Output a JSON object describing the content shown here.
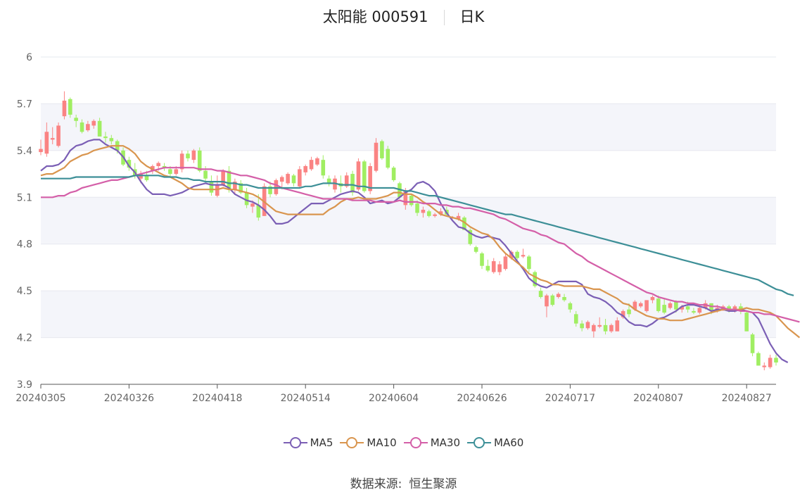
{
  "title": {
    "name": "太阳能 000591",
    "period": "日K"
  },
  "source": {
    "label": "数据来源:",
    "value": "恒生聚源"
  },
  "colors": {
    "up": "#fa8383",
    "down": "#a0ee62",
    "MA5": "#7b5fb5",
    "MA10": "#d9954e",
    "MA30": "#d45fa8",
    "MA60": "#3d8f97",
    "band": "#f4f5fa",
    "grid": "#e6e8ef",
    "axis": "#666666"
  },
  "chart_data": {
    "type": "candlestick",
    "y_ticks": [
      "6",
      "5.7",
      "5.4",
      "5.1",
      "4.8",
      "4.5",
      "4.2",
      "3.9"
    ],
    "ylim": [
      3.9,
      6.0
    ],
    "x_tick_labels": [
      "20240305",
      "20240326",
      "20240418",
      "20240514",
      "20240604",
      "20240626",
      "20240717",
      "20240807",
      "20240827"
    ],
    "x_tick_index": [
      0,
      15,
      30,
      45,
      60,
      75,
      90,
      105,
      120
    ],
    "legend": [
      "MA5",
      "MA10",
      "MA30",
      "MA60"
    ],
    "candles": [
      [
        5.39,
        5.47,
        5.37,
        5.41
      ],
      [
        5.38,
        5.58,
        5.36,
        5.52
      ],
      [
        5.47,
        5.55,
        5.44,
        5.48
      ],
      [
        5.43,
        5.58,
        5.42,
        5.56
      ],
      [
        5.62,
        5.78,
        5.6,
        5.72
      ],
      [
        5.73,
        5.74,
        5.61,
        5.63
      ],
      [
        5.61,
        5.63,
        5.55,
        5.59
      ],
      [
        5.58,
        5.6,
        5.51,
        5.52
      ],
      [
        5.53,
        5.59,
        5.52,
        5.57
      ],
      [
        5.56,
        5.6,
        5.54,
        5.59
      ],
      [
        5.59,
        5.61,
        5.49,
        5.49
      ],
      [
        5.49,
        5.52,
        5.45,
        5.48
      ],
      [
        5.48,
        5.5,
        5.44,
        5.46
      ],
      [
        5.46,
        5.47,
        5.38,
        5.4
      ],
      [
        5.4,
        5.42,
        5.3,
        5.31
      ],
      [
        5.34,
        5.36,
        5.27,
        5.29
      ],
      [
        5.28,
        5.32,
        5.22,
        5.24
      ],
      [
        5.22,
        5.27,
        5.19,
        5.25
      ],
      [
        5.24,
        5.27,
        5.2,
        5.21
      ],
      [
        5.27,
        5.31,
        5.25,
        5.3
      ],
      [
        5.3,
        5.33,
        5.27,
        5.32
      ],
      [
        5.3,
        5.32,
        5.27,
        5.29
      ],
      [
        5.28,
        5.3,
        5.23,
        5.25
      ],
      [
        5.25,
        5.3,
        5.24,
        5.28
      ],
      [
        5.28,
        5.4,
        5.26,
        5.38
      ],
      [
        5.38,
        5.4,
        5.33,
        5.35
      ],
      [
        5.34,
        5.41,
        5.32,
        5.4
      ],
      [
        5.4,
        5.42,
        5.26,
        5.27
      ],
      [
        5.27,
        5.3,
        5.2,
        5.22
      ],
      [
        5.2,
        5.24,
        5.11,
        5.13
      ],
      [
        5.11,
        5.24,
        5.1,
        5.18
      ],
      [
        5.18,
        5.28,
        5.17,
        5.27
      ],
      [
        5.27,
        5.3,
        5.13,
        5.15
      ],
      [
        5.15,
        5.22,
        5.12,
        5.2
      ],
      [
        5.19,
        5.21,
        5.12,
        5.13
      ],
      [
        5.13,
        5.16,
        5.03,
        5.05
      ],
      [
        5.04,
        5.08,
        5.0,
        5.06
      ],
      [
        5.05,
        5.12,
        4.95,
        4.97
      ],
      [
        4.98,
        5.19,
        4.98,
        5.17
      ],
      [
        5.17,
        5.2,
        5.1,
        5.12
      ],
      [
        5.12,
        5.22,
        5.11,
        5.21
      ],
      [
        5.2,
        5.24,
        5.15,
        5.23
      ],
      [
        5.19,
        5.26,
        5.18,
        5.25
      ],
      [
        5.24,
        5.25,
        5.17,
        5.19
      ],
      [
        5.17,
        5.3,
        5.16,
        5.28
      ],
      [
        5.26,
        5.31,
        5.24,
        5.3
      ],
      [
        5.28,
        5.36,
        5.27,
        5.34
      ],
      [
        5.31,
        5.36,
        5.3,
        5.35
      ],
      [
        5.34,
        5.37,
        5.22,
        5.24
      ],
      [
        5.22,
        5.24,
        5.17,
        5.19
      ],
      [
        5.15,
        5.24,
        5.13,
        5.22
      ],
      [
        5.19,
        5.24,
        5.13,
        5.17
      ],
      [
        5.17,
        5.26,
        5.16,
        5.24
      ],
      [
        5.25,
        5.27,
        5.11,
        5.13
      ],
      [
        5.15,
        5.35,
        5.14,
        5.33
      ],
      [
        5.33,
        5.34,
        5.13,
        5.14
      ],
      [
        5.14,
        5.32,
        5.12,
        5.3
      ],
      [
        5.27,
        5.48,
        5.26,
        5.45
      ],
      [
        5.46,
        5.47,
        5.34,
        5.35
      ],
      [
        5.41,
        5.43,
        5.28,
        5.29
      ],
      [
        5.29,
        5.3,
        5.2,
        5.21
      ],
      [
        5.19,
        5.2,
        5.09,
        5.1
      ],
      [
        5.05,
        5.16,
        5.02,
        5.14
      ],
      [
        5.11,
        5.12,
        5.04,
        5.05
      ],
      [
        5.06,
        5.08,
        4.98,
        5.0
      ],
      [
        5.0,
        5.04,
        4.97,
        5.02
      ],
      [
        5.01,
        5.02,
        4.97,
        4.98
      ],
      [
        4.98,
        5.0,
        4.97,
        4.99
      ],
      [
        4.99,
        5.03,
        4.98,
        5.01
      ],
      [
        5.02,
        5.04,
        4.98,
        4.99
      ],
      [
        4.97,
        4.98,
        4.96,
        4.97
      ],
      [
        4.96,
        5.0,
        4.95,
        4.98
      ],
      [
        4.97,
        4.98,
        4.89,
        4.89
      ],
      [
        4.89,
        4.9,
        4.79,
        4.8
      ],
      [
        4.78,
        4.79,
        4.74,
        4.75
      ],
      [
        4.74,
        4.75,
        4.64,
        4.66
      ],
      [
        4.66,
        4.7,
        4.62,
        4.63
      ],
      [
        4.62,
        4.71,
        4.61,
        4.69
      ],
      [
        4.62,
        4.69,
        4.6,
        4.67
      ],
      [
        4.64,
        4.74,
        4.63,
        4.72
      ],
      [
        4.71,
        4.76,
        4.7,
        4.75
      ],
      [
        4.75,
        4.76,
        4.7,
        4.71
      ],
      [
        4.72,
        4.77,
        4.71,
        4.73
      ],
      [
        4.72,
        4.73,
        4.62,
        4.64
      ],
      [
        4.62,
        4.63,
        4.52,
        4.53
      ],
      [
        4.5,
        4.52,
        4.45,
        4.46
      ],
      [
        4.4,
        4.48,
        4.33,
        4.47
      ],
      [
        4.47,
        4.48,
        4.4,
        4.41
      ],
      [
        4.46,
        4.49,
        4.45,
        4.48
      ],
      [
        4.46,
        4.48,
        4.43,
        4.44
      ],
      [
        4.42,
        4.43,
        4.36,
        4.38
      ],
      [
        4.35,
        4.37,
        4.27,
        4.29
      ],
      [
        4.29,
        4.31,
        4.24,
        4.26
      ],
      [
        4.26,
        4.31,
        4.25,
        4.3
      ],
      [
        4.24,
        4.29,
        4.2,
        4.28
      ],
      [
        4.27,
        4.33,
        4.26,
        4.28
      ],
      [
        4.28,
        4.32,
        4.22,
        4.24
      ],
      [
        4.24,
        4.29,
        4.23,
        4.28
      ],
      [
        4.24,
        4.33,
        4.24,
        4.31
      ],
      [
        4.33,
        4.38,
        4.32,
        4.37
      ],
      [
        4.38,
        4.42,
        4.33,
        4.35
      ],
      [
        4.38,
        4.44,
        4.37,
        4.43
      ],
      [
        4.4,
        4.43,
        4.39,
        4.42
      ],
      [
        4.37,
        4.44,
        4.36,
        4.44
      ],
      [
        4.44,
        4.47,
        4.42,
        4.46
      ],
      [
        4.45,
        4.47,
        4.36,
        4.37
      ],
      [
        4.41,
        4.45,
        4.35,
        4.36
      ],
      [
        4.39,
        4.43,
        4.38,
        4.42
      ],
      [
        4.43,
        4.44,
        4.36,
        4.38
      ],
      [
        4.38,
        4.41,
        4.36,
        4.4
      ],
      [
        4.4,
        4.43,
        4.36,
        4.38
      ],
      [
        4.37,
        4.39,
        4.35,
        4.36
      ],
      [
        4.36,
        4.4,
        4.35,
        4.39
      ],
      [
        4.39,
        4.44,
        4.38,
        4.42
      ],
      [
        4.42,
        4.42,
        4.35,
        4.37
      ],
      [
        4.38,
        4.41,
        4.36,
        4.39
      ],
      [
        4.38,
        4.41,
        4.37,
        4.4
      ],
      [
        4.4,
        4.41,
        4.36,
        4.37
      ],
      [
        4.38,
        4.41,
        4.36,
        4.4
      ],
      [
        4.4,
        4.42,
        4.35,
        4.37
      ],
      [
        4.36,
        4.37,
        4.24,
        4.24
      ],
      [
        4.22,
        4.23,
        4.08,
        4.1
      ],
      [
        4.1,
        4.11,
        4.02,
        4.02
      ],
      [
        4.01,
        4.04,
        3.99,
        4.02
      ],
      [
        4.01,
        4.09,
        4.0,
        4.07
      ],
      [
        4.07,
        4.09,
        4.02,
        4.04
      ]
    ],
    "ma": {
      "MA5": [
        5.27,
        5.3,
        5.3,
        5.31,
        5.34,
        5.4,
        5.43,
        5.44,
        5.46,
        5.47,
        5.47,
        5.44,
        5.42,
        5.4,
        5.36,
        5.3,
        5.26,
        5.2,
        5.15,
        5.12,
        5.12,
        5.12,
        5.11,
        5.12,
        5.13,
        5.15,
        5.17,
        5.18,
        5.19,
        5.18,
        5.18,
        5.18,
        5.16,
        5.12,
        5.1,
        5.08,
        5.07,
        5.05,
        5.02,
        4.98,
        4.93,
        4.93,
        4.94,
        4.97,
        5.0,
        5.03,
        5.06,
        5.06,
        5.06,
        5.08,
        5.1,
        5.12,
        5.13,
        5.14,
        5.13,
        5.1,
        5.06,
        5.07,
        5.08,
        5.06,
        5.07,
        5.1,
        5.13,
        5.15,
        5.19,
        5.2,
        5.18,
        5.14,
        5.06,
        5.0,
        4.95,
        4.91,
        4.9,
        4.87,
        4.85,
        4.84,
        4.85,
        4.84,
        4.83,
        4.79,
        4.74,
        4.69,
        4.64,
        4.58,
        4.55,
        4.53,
        4.52,
        4.54,
        4.56,
        4.56,
        4.56,
        4.56,
        4.54,
        4.48,
        4.46,
        4.45,
        4.43,
        4.4,
        4.36,
        4.34,
        4.3,
        4.28,
        4.28,
        4.27,
        4.29,
        4.32,
        4.33,
        4.35,
        4.37,
        4.4,
        4.41,
        4.41,
        4.4,
        4.39,
        4.37,
        4.38,
        4.38,
        4.37,
        4.37,
        4.38,
        4.37,
        4.36,
        4.32,
        4.24,
        4.16,
        4.1,
        4.06,
        4.04
      ],
      "MA10": [
        5.24,
        5.25,
        5.25,
        5.27,
        5.29,
        5.33,
        5.35,
        5.37,
        5.38,
        5.4,
        5.41,
        5.42,
        5.43,
        5.43,
        5.43,
        5.41,
        5.38,
        5.33,
        5.3,
        5.28,
        5.26,
        5.24,
        5.23,
        5.21,
        5.19,
        5.16,
        5.15,
        5.15,
        5.15,
        5.15,
        5.15,
        5.16,
        5.15,
        5.15,
        5.14,
        5.13,
        5.12,
        5.1,
        5.07,
        5.04,
        5.01,
        5.0,
        4.99,
        4.99,
        4.99,
        4.99,
        4.99,
        4.99,
        4.99,
        5.02,
        5.04,
        5.07,
        5.09,
        5.09,
        5.1,
        5.09,
        5.09,
        5.09,
        5.1,
        5.11,
        5.13,
        5.13,
        5.12,
        5.12,
        5.1,
        5.07,
        5.05,
        5.02,
        4.99,
        4.98,
        4.97,
        4.96,
        4.94,
        4.91,
        4.89,
        4.87,
        4.86,
        4.83,
        4.78,
        4.74,
        4.71,
        4.68,
        4.65,
        4.61,
        4.59,
        4.57,
        4.56,
        4.54,
        4.54,
        4.53,
        4.53,
        4.53,
        4.53,
        4.52,
        4.51,
        4.51,
        4.49,
        4.47,
        4.45,
        4.42,
        4.41,
        4.38,
        4.36,
        4.34,
        4.33,
        4.32,
        4.32,
        4.31,
        4.31,
        4.31,
        4.32,
        4.33,
        4.34,
        4.35,
        4.36,
        4.37,
        4.38,
        4.38,
        4.38,
        4.38,
        4.39,
        4.38,
        4.38,
        4.37,
        4.36,
        4.34,
        4.3,
        4.26,
        4.23,
        4.2
      ],
      "MA30": [
        5.1,
        5.1,
        5.1,
        5.11,
        5.11,
        5.13,
        5.14,
        5.16,
        5.17,
        5.18,
        5.19,
        5.2,
        5.21,
        5.21,
        5.22,
        5.23,
        5.24,
        5.25,
        5.26,
        5.27,
        5.28,
        5.29,
        5.29,
        5.29,
        5.29,
        5.29,
        5.29,
        5.28,
        5.28,
        5.28,
        5.27,
        5.27,
        5.26,
        5.25,
        5.24,
        5.24,
        5.23,
        5.22,
        5.21,
        5.19,
        5.18,
        5.16,
        5.15,
        5.14,
        5.13,
        5.12,
        5.11,
        5.1,
        5.09,
        5.09,
        5.09,
        5.09,
        5.09,
        5.08,
        5.08,
        5.08,
        5.08,
        5.07,
        5.07,
        5.07,
        5.07,
        5.08,
        5.07,
        5.07,
        5.07,
        5.06,
        5.06,
        5.06,
        5.05,
        5.05,
        5.04,
        5.04,
        5.03,
        5.03,
        5.02,
        5.01,
        5.0,
        4.99,
        4.97,
        4.96,
        4.94,
        4.92,
        4.9,
        4.89,
        4.88,
        4.86,
        4.85,
        4.83,
        4.81,
        4.8,
        4.77,
        4.74,
        4.72,
        4.69,
        4.67,
        4.65,
        4.63,
        4.61,
        4.59,
        4.57,
        4.55,
        4.53,
        4.51,
        4.49,
        4.48,
        4.46,
        4.45,
        4.44,
        4.43,
        4.43,
        4.42,
        4.42,
        4.41,
        4.41,
        4.4,
        4.4,
        4.39,
        4.38,
        4.38,
        4.37,
        4.37,
        4.36,
        4.36,
        4.35,
        4.35,
        4.34,
        4.33,
        4.32,
        4.31,
        4.3
      ],
      "MA60": [
        5.22,
        5.22,
        5.22,
        5.22,
        5.22,
        5.22,
        5.23,
        5.23,
        5.23,
        5.23,
        5.23,
        5.23,
        5.23,
        5.23,
        5.23,
        5.23,
        5.24,
        5.24,
        5.24,
        5.24,
        5.24,
        5.23,
        5.23,
        5.23,
        5.22,
        5.22,
        5.21,
        5.21,
        5.2,
        5.2,
        5.2,
        5.2,
        5.19,
        5.19,
        5.18,
        5.18,
        5.17,
        5.16,
        5.16,
        5.16,
        5.16,
        5.16,
        5.16,
        5.16,
        5.16,
        5.17,
        5.17,
        5.18,
        5.19,
        5.19,
        5.19,
        5.18,
        5.18,
        5.18,
        5.17,
        5.17,
        5.16,
        5.16,
        5.16,
        5.16,
        5.16,
        5.15,
        5.14,
        5.14,
        5.13,
        5.12,
        5.11,
        5.11,
        5.1,
        5.09,
        5.08,
        5.07,
        5.06,
        5.05,
        5.04,
        5.03,
        5.02,
        5.01,
        5.0,
        4.99,
        4.99,
        4.98,
        4.97,
        4.96,
        4.95,
        4.94,
        4.93,
        4.92,
        4.91,
        4.9,
        4.89,
        4.88,
        4.87,
        4.86,
        4.85,
        4.84,
        4.83,
        4.82,
        4.81,
        4.8,
        4.79,
        4.78,
        4.77,
        4.76,
        4.75,
        4.74,
        4.73,
        4.72,
        4.71,
        4.7,
        4.69,
        4.68,
        4.67,
        4.66,
        4.65,
        4.64,
        4.63,
        4.62,
        4.61,
        4.6,
        4.59,
        4.58,
        4.57,
        4.55,
        4.53,
        4.51,
        4.5,
        4.48,
        4.47
      ]
    }
  }
}
